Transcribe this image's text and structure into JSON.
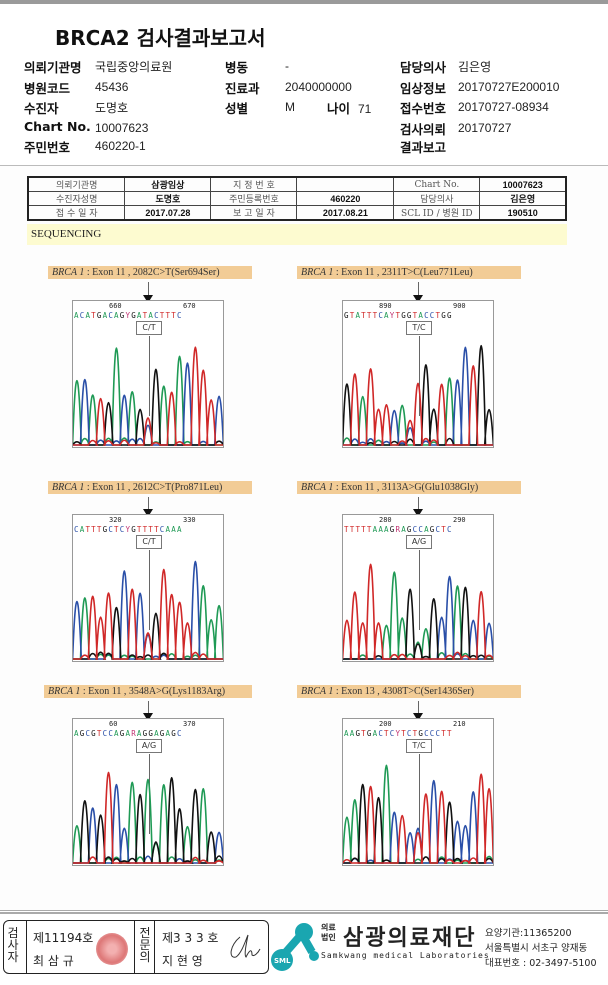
{
  "title": "BRCA2 검사결과보고서",
  "header": {
    "col1": [
      [
        "의뢰기관명",
        "국립중앙의료원"
      ],
      [
        "병원코드",
        "45436"
      ],
      [
        "수진자",
        "도명호"
      ],
      [
        "Chart No.",
        "10007623"
      ],
      [
        "주민번호",
        "460220-1"
      ]
    ],
    "col2": [
      [
        "병동",
        "-"
      ],
      [
        "진료과",
        "2040000000"
      ],
      [
        "성별",
        "M"
      ]
    ],
    "age_label": "나이",
    "age": "71",
    "col3": [
      [
        "담당의사",
        "김은영"
      ],
      [
        "임상정보",
        "20170727E200010"
      ],
      [
        "접수번호",
        "20170727-08934"
      ],
      [
        "검사의뢰",
        "20170727"
      ],
      [
        "결과보고",
        ""
      ]
    ]
  },
  "info_table": [
    [
      "의뢰기관명",
      "삼광임상",
      "지 정 번 호",
      "",
      "Chart No.",
      "10007623"
    ],
    [
      "수진자성명",
      "도명호",
      "주민등록번호",
      "460220",
      "담당의사",
      "김은영"
    ],
    [
      "접 수 일 자",
      "2017.07.28",
      "보 고 일 자",
      "2017.08.21",
      "SCL  ID / 병원 ID",
      "190510"
    ]
  ],
  "section": "SEQUENCING",
  "panels": [
    {
      "gene": "BRCA 1",
      "label": " : Exon 11 , 2082C>T(Ser694Ser)",
      "pos1": "660",
      "pos2": "670",
      "seq": "ACATGACAGYGATACTTTC",
      "call": "C/T"
    },
    {
      "gene": "BRCA 1",
      "label": " : Exon 11 , 2311T>C(Leu771Leu)",
      "pos1": "890",
      "pos2": "900",
      "seq": "GTATTTCAYTGGTACCTGG",
      "call": "T/C"
    },
    {
      "gene": "BRCA 1",
      "label": " : Exon 11 , 2612C>T(Pro871Leu)",
      "pos1": "320",
      "pos2": "330",
      "seq": "CATTTGCTCYGTTTTCAAA",
      "call": "C/T"
    },
    {
      "gene": "BRCA 1",
      "label": " : Exon 11 , 3113A>G(Glu1038Gly)",
      "pos1": "280",
      "pos2": "290",
      "seq": "TTTTTAAAGRAGCCAGCTC",
      "call": "A/G"
    },
    {
      "gene": "BRCA 1",
      "label": " : Exon 11 , 3548A>G(Lys1183Arg)",
      "pos1": "60",
      "pos2": "370",
      "seq": "AGCGTCCAGARAGGAGAGC",
      "call": "A/G"
    },
    {
      "gene": "BRCA 1",
      "label": " : Exon 13 , 4308T>C(Ser1436Ser)",
      "pos1": "200",
      "pos2": "210",
      "seq": "AAGTGACTCYTCTGCCCTT",
      "call": "T/C"
    }
  ],
  "base_colors": {
    "A": "#1f9a55",
    "C": "#2a4fa8",
    "G": "#111111",
    "T": "#d02828",
    "Y": "#c03070",
    "R": "#c03070"
  },
  "footer": {
    "examiner_label": "검사자",
    "examiner_no": "제11194호",
    "examiner_name": "최 삼 규",
    "specialist_label": "전문의",
    "specialist_no": "제3 3 3 호",
    "specialist_name": "지 현 영",
    "logo_text": "SML",
    "org_prefix": "의료\n법인",
    "org_prefix1": "의료",
    "org_prefix2": "법인",
    "org_name": "삼광의료재단",
    "org_en": "Samkwang medical Laboratories",
    "code": "요양기관:11365200",
    "address": "서울특별시 서초구 양재동",
    "phone": "대표번호 : 02-3497-5100"
  }
}
